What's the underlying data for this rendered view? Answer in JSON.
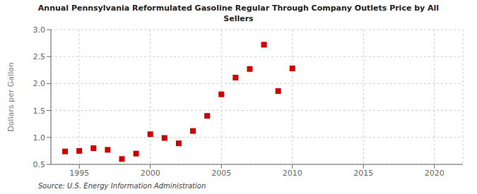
{
  "chart_data": {
    "type": "scatter",
    "title": "Annual Pennsylvania Reformulated Gasoline Regular Through Company Outlets Price by All\nSellers",
    "ylabel": "Dollars per Gallon",
    "annotations": [
      "Source: U.S. Energy Information Administration"
    ],
    "x": [
      1994,
      1995,
      1996,
      1997,
      1998,
      1999,
      2000,
      2001,
      2002,
      2003,
      2004,
      2005,
      2006,
      2007,
      2008,
      2009,
      2010
    ],
    "values": [
      0.74,
      0.75,
      0.8,
      0.77,
      0.6,
      0.7,
      1.06,
      0.99,
      0.89,
      1.12,
      1.4,
      1.8,
      2.11,
      2.27,
      2.72,
      1.86,
      2.28
    ],
    "color": "#cc0000",
    "marker": "square",
    "xlim": [
      1993,
      2022
    ],
    "ylim": [
      0.5,
      3.0
    ],
    "xticks": [
      1995,
      2000,
      2005,
      2010,
      2015,
      2020
    ],
    "yticks": [
      0.5,
      {
        "value": 1,
        "label": "1.0"
      },
      1.5,
      {
        "value": 2,
        "label": "2.0"
      },
      2.5,
      {
        "value": 3,
        "label": "3.0"
      }
    ],
    "grid": true
  }
}
